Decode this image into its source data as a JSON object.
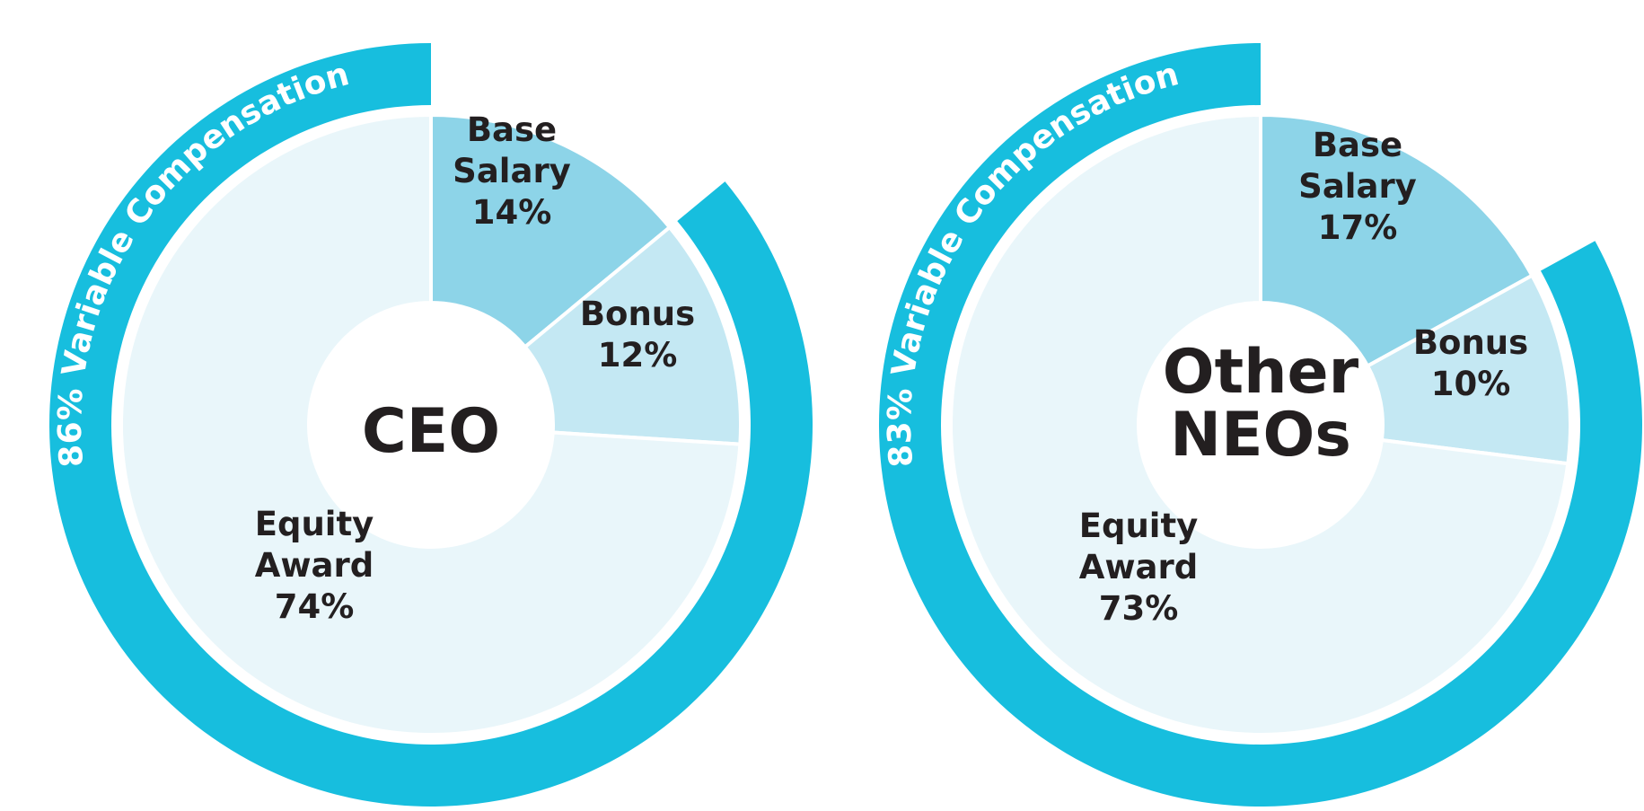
{
  "chart_data": [
    {
      "type": "pie",
      "center_label": [
        "CEO"
      ],
      "slices": [
        {
          "label_lines": [
            "Base",
            "Salary"
          ],
          "value_label": "14%",
          "value": 14,
          "color": "#8dd4e8"
        },
        {
          "label_lines": [
            "Bonus"
          ],
          "value_label": "12%",
          "value": 12,
          "color": "#c4e8f3"
        },
        {
          "label_lines": [
            "Equity",
            "Award"
          ],
          "value_label": "74%",
          "value": 74,
          "color": "#e9f6fa"
        }
      ],
      "outer_arc": {
        "label": "86% Variable Compensation",
        "value": 86,
        "color": "#17bede"
      }
    },
    {
      "type": "pie",
      "center_label": [
        "Other",
        "NEOs"
      ],
      "slices": [
        {
          "label_lines": [
            "Base",
            "Salary"
          ],
          "value_label": "17%",
          "value": 17,
          "color": "#8dd4e8"
        },
        {
          "label_lines": [
            "Bonus"
          ],
          "value_label": "10%",
          "value": 10,
          "color": "#c4e8f3"
        },
        {
          "label_lines": [
            "Equity",
            "Award"
          ],
          "value_label": "73%",
          "value": 73,
          "color": "#e9f6fa"
        }
      ],
      "outer_arc": {
        "label": "83% Variable Compensation",
        "value": 83,
        "color": "#17bede"
      }
    }
  ]
}
